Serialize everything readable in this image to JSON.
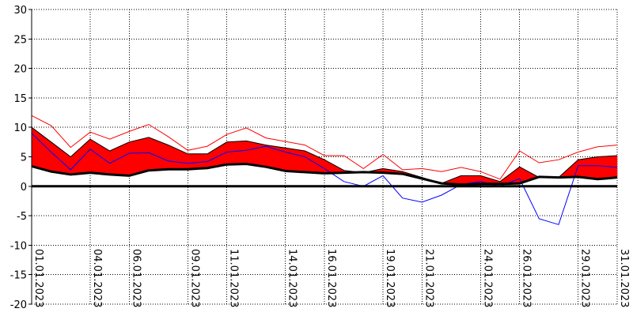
{
  "chart_data": {
    "type": "area",
    "title": "",
    "xlabel": "",
    "ylabel": "",
    "ylim": [
      -20,
      30
    ],
    "xlim": [
      "01.01.2023",
      "31.01.2023"
    ],
    "grid": true,
    "legend": "none",
    "y_ticks": [
      30,
      25,
      20,
      15,
      10,
      5,
      0,
      -5,
      -10,
      -15,
      -20
    ],
    "x_tick_labels": [
      "01.01.2023",
      "04.01.2023",
      "06.01.2023",
      "09.01.2023",
      "11.01.2023",
      "14.01.2023",
      "16.01.2023",
      "19.01.2023",
      "21.01.2023",
      "24.01.2023",
      "26.01.2023",
      "29.01.2023",
      "31.01.2023"
    ],
    "x_dates": [
      "01.01.2023",
      "02.01.2023",
      "03.01.2023",
      "04.01.2023",
      "05.01.2023",
      "06.01.2023",
      "07.01.2023",
      "08.01.2023",
      "09.01.2023",
      "10.01.2023",
      "11.01.2023",
      "12.01.2023",
      "13.01.2023",
      "14.01.2023",
      "15.01.2023",
      "16.01.2023",
      "17.01.2023",
      "18.01.2023",
      "19.01.2023",
      "20.01.2023",
      "21.01.2023",
      "22.01.2023",
      "23.01.2023",
      "24.01.2023",
      "25.01.2023",
      "26.01.2023",
      "27.01.2023",
      "28.01.2023",
      "29.01.2023",
      "30.01.2023",
      "31.01.2023"
    ],
    "series": [
      {
        "values": [
          10,
          7.5,
          5,
          8,
          6,
          7.5,
          8.3,
          7,
          5.5,
          5.5,
          7.5,
          7.7,
          7,
          6.5,
          6,
          4.5,
          2.7,
          2.3,
          3,
          2.5,
          1.5,
          0.5,
          1.8,
          1.8,
          0.8,
          3.3,
          1.5,
          1.5,
          4.5,
          5,
          5.2
        ]
      },
      {
        "values": [
          12,
          10.3,
          6.6,
          9.2,
          8,
          9.3,
          10.5,
          8.4,
          6.1,
          6.8,
          8.8,
          9.9,
          8.2,
          7.6,
          7,
          5.2,
          5.2,
          3,
          5.4,
          2.8,
          3,
          2.5,
          3.2,
          2.5,
          1.2,
          6,
          4,
          4.5,
          5.8,
          6.7,
          7
        ]
      },
      {
        "values": [
          9,
          5.8,
          2.8,
          6.3,
          3.9,
          5.6,
          5.7,
          4.3,
          3.9,
          4.2,
          5.8,
          6.1,
          6.8,
          5.8,
          5,
          3,
          0.8,
          0,
          1.8,
          -2,
          -2.7,
          -1.5,
          0.3,
          0.8,
          0,
          1.3,
          -5.5,
          -6.5,
          3.5,
          3.5,
          3.2
        ]
      },
      {
        "values": [
          3.4,
          2.5,
          2,
          2.3,
          2,
          1.8,
          2.7,
          2.9,
          2.9,
          3.1,
          3.7,
          3.8,
          3.3,
          2.6,
          2.4,
          2.2,
          2.3,
          2.4,
          2.3,
          2.1,
          1.3,
          0.5,
          0.3,
          0.4,
          0.4,
          0.5,
          1.6,
          1.5,
          1.6,
          1.2,
          1.5
        ]
      }
    ],
    "fill_above_color": "#ff0000",
    "fill_below_color": "#0000ff",
    "upper_line_color": "#ff0000",
    "lower_line_color": "#0000ff",
    "base_line_color": "#000000"
  }
}
